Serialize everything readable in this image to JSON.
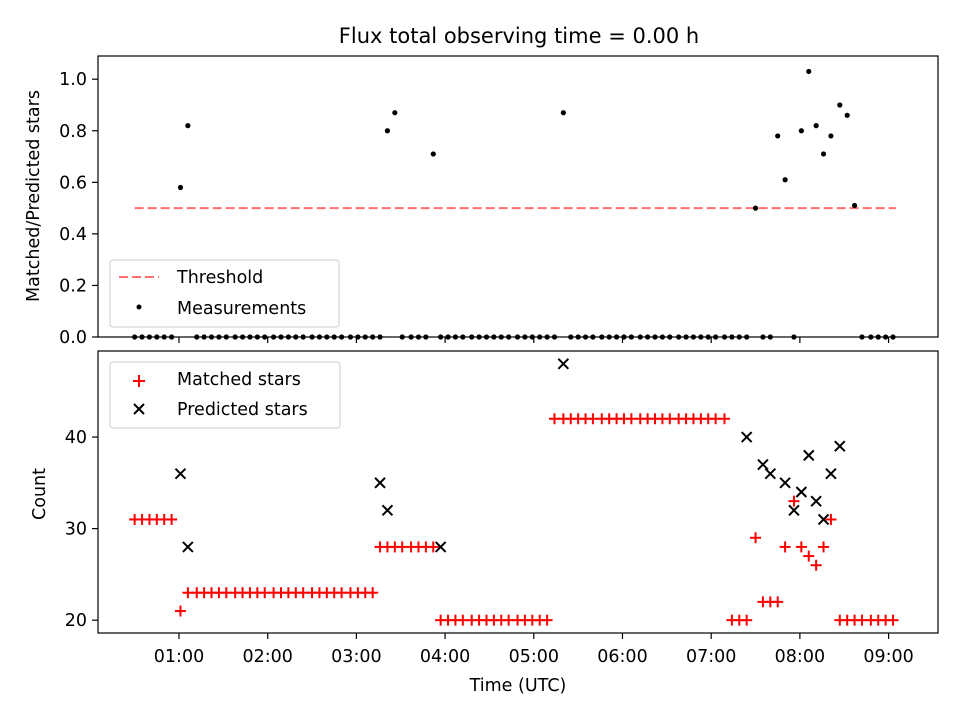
{
  "chart_data": [
    {
      "type": "scatter",
      "title": "Flux total observing time = 0.00 h",
      "xlabel": "",
      "ylabel": "Matched/Predicted stars",
      "xlim": [
        "00:24",
        "09:30"
      ],
      "ylim": [
        0,
        1.09
      ],
      "yticks": [
        0.0,
        0.2,
        0.4,
        0.6,
        0.8,
        1.0
      ],
      "ytick_labels": [
        "0.0",
        "0.2",
        "0.4",
        "0.6",
        "0.8",
        "1.0"
      ],
      "legend": {
        "position": "lower-left",
        "entries": [
          "Threshold",
          "Measurements"
        ]
      },
      "series": [
        {
          "name": "Threshold",
          "style": "dashed-line",
          "color": "#ff6f6f",
          "x": [
            "00:30",
            "09:05"
          ],
          "y": [
            0.5,
            0.5
          ]
        },
        {
          "name": "Measurements",
          "style": "dot",
          "color": "#000000",
          "x": [
            "00:30",
            "00:35",
            "00:40",
            "00:45",
            "00:50",
            "00:55",
            "01:01",
            "01:06",
            "01:12",
            "01:17",
            "01:22",
            "01:27",
            "01:32",
            "01:38",
            "01:43",
            "01:48",
            "01:53",
            "01:58",
            "02:04",
            "02:09",
            "02:14",
            "02:19",
            "02:24",
            "02:30",
            "02:35",
            "02:40",
            "02:45",
            "02:50",
            "02:56",
            "03:01",
            "03:06",
            "03:11",
            "03:16",
            "03:21",
            "03:26",
            "03:31",
            "03:37",
            "03:42",
            "03:47",
            "03:52",
            "03:57",
            "04:02",
            "04:07",
            "04:12",
            "04:18",
            "04:23",
            "04:28",
            "04:33",
            "04:38",
            "04:43",
            "04:49",
            "04:54",
            "04:59",
            "05:04",
            "05:09",
            "05:14",
            "05:20",
            "05:25",
            "05:30",
            "05:35",
            "05:40",
            "05:46",
            "05:51",
            "05:56",
            "06:01",
            "06:06",
            "06:12",
            "06:17",
            "06:22",
            "06:27",
            "06:32",
            "06:38",
            "06:43",
            "06:48",
            "06:53",
            "06:58",
            "07:03",
            "07:09",
            "07:14",
            "07:19",
            "07:24",
            "07:30",
            "07:35",
            "07:40",
            "07:45",
            "07:50",
            "07:56",
            "08:01",
            "08:06",
            "08:11",
            "08:16",
            "08:21",
            "08:27",
            "08:32",
            "08:37",
            "08:42",
            "08:48",
            "08:53",
            "08:58",
            "09:03"
          ],
          "y": [
            0,
            0,
            0,
            0,
            0,
            0,
            0.58,
            0.82,
            0,
            0,
            0,
            0,
            0,
            0,
            0,
            0,
            0,
            0,
            0,
            0,
            0,
            0,
            0,
            0,
            0,
            0,
            0,
            0,
            0,
            0,
            0,
            0,
            0,
            0.8,
            0.87,
            0,
            0,
            0,
            0,
            0.71,
            0,
            0,
            0,
            0,
            0,
            0,
            0,
            0,
            0,
            0,
            0,
            0,
            0,
            0,
            0,
            0,
            0.87,
            0,
            0,
            0,
            0,
            0,
            0,
            0,
            0,
            0,
            0,
            0,
            0,
            0,
            0,
            0,
            0,
            0,
            0,
            0,
            0,
            0,
            0,
            0,
            0,
            0.5,
            0,
            0,
            0.78,
            0.61,
            0,
            0.8,
            1.03,
            0.82,
            0.71,
            0.78,
            0.9,
            0.86,
            0.51,
            0,
            0,
            0,
            0,
            0
          ]
        }
      ]
    },
    {
      "type": "scatter",
      "title": "",
      "xlabel": "Time (UTC)",
      "ylabel": "Count",
      "xlim": [
        "00:24",
        "09:30"
      ],
      "ylim": [
        18.6,
        49.4
      ],
      "yticks": [
        20,
        30,
        40
      ],
      "ytick_labels": [
        "20",
        "30",
        "40"
      ],
      "xticks": [
        "01:00",
        "02:00",
        "03:00",
        "04:00",
        "05:00",
        "06:00",
        "07:00",
        "08:00",
        "09:00"
      ],
      "legend": {
        "position": "upper-left",
        "entries": [
          "Matched stars",
          "Predicted stars"
        ]
      },
      "series": [
        {
          "name": "Matched stars",
          "style": "plus",
          "color": "#ff0000",
          "x": [
            "00:30",
            "00:35",
            "00:40",
            "00:45",
            "00:50",
            "00:55",
            "01:01",
            "01:06",
            "01:12",
            "01:17",
            "01:22",
            "01:27",
            "01:32",
            "01:38",
            "01:43",
            "01:48",
            "01:53",
            "01:58",
            "02:04",
            "02:09",
            "02:14",
            "02:19",
            "02:24",
            "02:30",
            "02:35",
            "02:40",
            "02:45",
            "02:50",
            "02:56",
            "03:01",
            "03:06",
            "03:11",
            "03:16",
            "03:21",
            "03:26",
            "03:31",
            "03:37",
            "03:42",
            "03:47",
            "03:52",
            "03:57",
            "04:02",
            "04:07",
            "04:12",
            "04:18",
            "04:23",
            "04:28",
            "04:33",
            "04:38",
            "04:43",
            "04:49",
            "04:54",
            "04:59",
            "05:04",
            "05:09",
            "05:14",
            "05:20",
            "05:25",
            "05:30",
            "05:35",
            "05:40",
            "05:46",
            "05:51",
            "05:56",
            "06:01",
            "06:06",
            "06:12",
            "06:17",
            "06:22",
            "06:27",
            "06:32",
            "06:38",
            "06:43",
            "06:48",
            "06:53",
            "06:58",
            "07:03",
            "07:09",
            "07:14",
            "07:19",
            "07:24",
            "07:30",
            "07:35",
            "07:40",
            "07:45",
            "07:50",
            "07:56",
            "08:01",
            "08:06",
            "08:11",
            "08:16",
            "08:21",
            "08:27",
            "08:32",
            "08:37",
            "08:42",
            "08:48",
            "08:53",
            "08:58",
            "09:03"
          ],
          "y": [
            31,
            31,
            31,
            31,
            31,
            31,
            21,
            23,
            23,
            23,
            23,
            23,
            23,
            23,
            23,
            23,
            23,
            23,
            23,
            23,
            23,
            23,
            23,
            23,
            23,
            23,
            23,
            23,
            23,
            23,
            23,
            23,
            28,
            28,
            28,
            28,
            28,
            28,
            28,
            28,
            20,
            20,
            20,
            20,
            20,
            20,
            20,
            20,
            20,
            20,
            20,
            20,
            20,
            20,
            20,
            42,
            42,
            42,
            42,
            42,
            42,
            42,
            42,
            42,
            42,
            42,
            42,
            42,
            42,
            42,
            42,
            42,
            42,
            42,
            42,
            42,
            42,
            42,
            20,
            20,
            20,
            29,
            22,
            22,
            22,
            28,
            33,
            28,
            27,
            26,
            28,
            31,
            20,
            20,
            20,
            20,
            20,
            20,
            20,
            20
          ]
        },
        {
          "name": "Predicted stars",
          "style": "x",
          "color": "#000000",
          "x": [
            "01:01",
            "01:06",
            "03:16",
            "03:21",
            "03:57",
            "05:20",
            "07:24",
            "07:35",
            "07:40",
            "07:50",
            "07:56",
            "08:01",
            "08:06",
            "08:11",
            "08:16",
            "08:21",
            "08:27"
          ],
          "y": [
            36,
            28,
            35,
            32,
            28,
            48,
            40,
            37,
            36,
            35,
            32,
            34,
            38,
            33,
            31,
            36,
            39
          ]
        }
      ]
    }
  ]
}
